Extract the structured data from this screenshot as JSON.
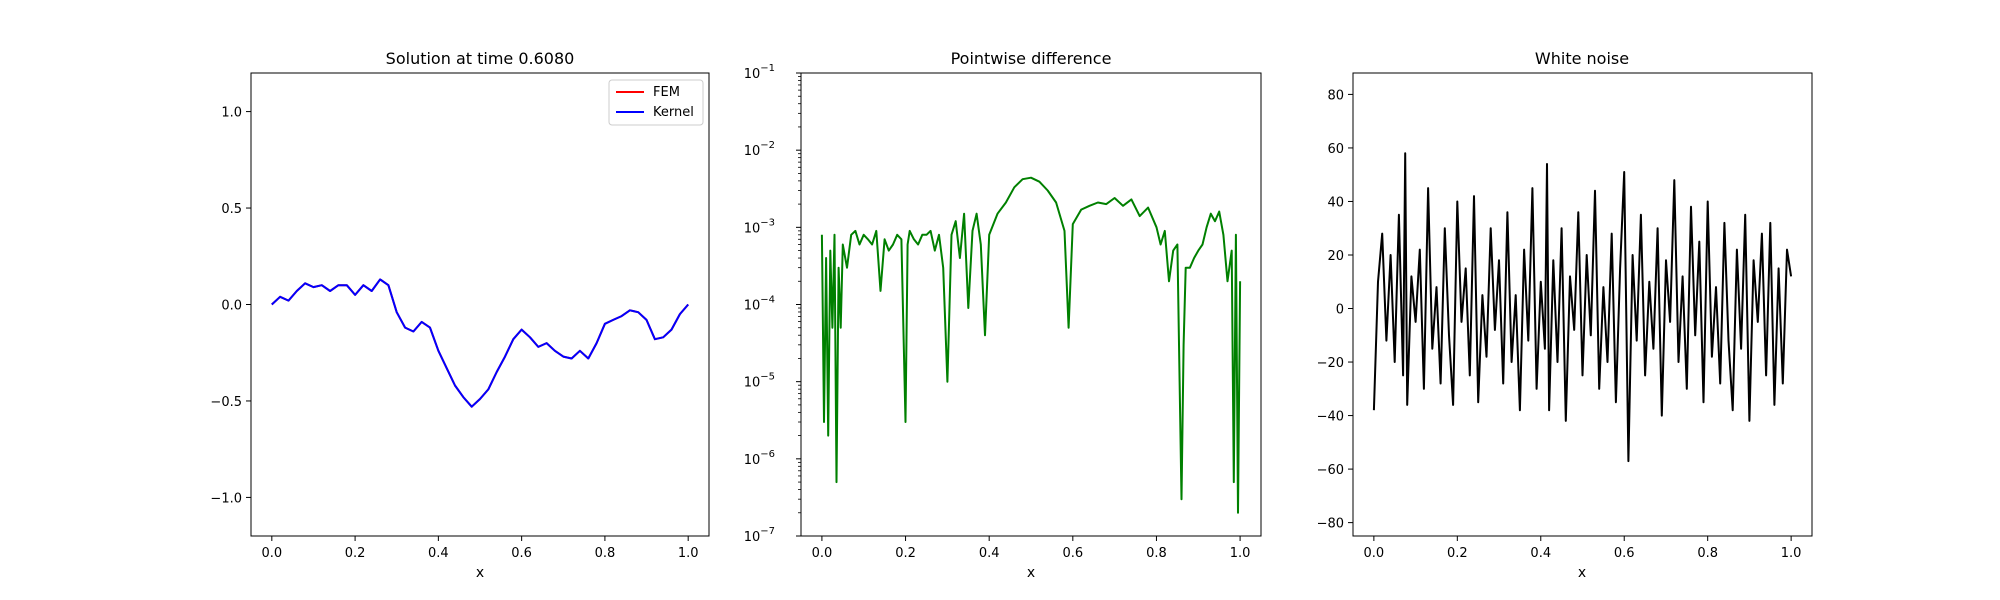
{
  "chart_data": [
    {
      "type": "line",
      "title": "Solution at time 0.6080",
      "xlabel": "x",
      "ylabel": "",
      "xlim": [
        -0.05,
        1.05
      ],
      "ylim": [
        -1.2,
        1.2
      ],
      "xticks": [
        "0.0",
        "0.2",
        "0.4",
        "0.6",
        "0.8",
        "1.0"
      ],
      "yticks": [
        "-1.0",
        "-0.5",
        "0.0",
        "0.5",
        "1.0"
      ],
      "legend": {
        "position": "top-right",
        "entries": [
          "FEM",
          "Kernel"
        ]
      },
      "series": [
        {
          "name": "FEM",
          "color": "#ff0000",
          "x": [
            0.0,
            0.02,
            0.04,
            0.06,
            0.08,
            0.1,
            0.12,
            0.14,
            0.16,
            0.18,
            0.2,
            0.22,
            0.24,
            0.26,
            0.28,
            0.3,
            0.32,
            0.34,
            0.36,
            0.38,
            0.4,
            0.42,
            0.44,
            0.46,
            0.48,
            0.5,
            0.52,
            0.54,
            0.56,
            0.58,
            0.6,
            0.62,
            0.64,
            0.66,
            0.68,
            0.7,
            0.72,
            0.74,
            0.76,
            0.78,
            0.8,
            0.82,
            0.84,
            0.86,
            0.88,
            0.9,
            0.92,
            0.94,
            0.96,
            0.98,
            1.0
          ],
          "y": [
            0.0,
            0.04,
            0.02,
            0.07,
            0.11,
            0.09,
            0.1,
            0.07,
            0.1,
            0.1,
            0.05,
            0.1,
            0.07,
            0.13,
            0.1,
            -0.04,
            -0.12,
            -0.14,
            -0.09,
            -0.12,
            -0.24,
            -0.33,
            -0.42,
            -0.48,
            -0.53,
            -0.49,
            -0.44,
            -0.35,
            -0.27,
            -0.18,
            -0.13,
            -0.17,
            -0.22,
            -0.2,
            -0.24,
            -0.27,
            -0.28,
            -0.24,
            -0.28,
            -0.2,
            -0.1,
            -0.08,
            -0.06,
            -0.03,
            -0.04,
            -0.08,
            -0.18,
            -0.17,
            -0.13,
            -0.05,
            0.0
          ]
        },
        {
          "name": "Kernel",
          "color": "#0000ff",
          "x": [
            0.0,
            0.02,
            0.04,
            0.06,
            0.08,
            0.1,
            0.12,
            0.14,
            0.16,
            0.18,
            0.2,
            0.22,
            0.24,
            0.26,
            0.28,
            0.3,
            0.32,
            0.34,
            0.36,
            0.38,
            0.4,
            0.42,
            0.44,
            0.46,
            0.48,
            0.5,
            0.52,
            0.54,
            0.56,
            0.58,
            0.6,
            0.62,
            0.64,
            0.66,
            0.68,
            0.7,
            0.72,
            0.74,
            0.76,
            0.78,
            0.8,
            0.82,
            0.84,
            0.86,
            0.88,
            0.9,
            0.92,
            0.94,
            0.96,
            0.98,
            1.0
          ],
          "y": [
            0.0,
            0.04,
            0.02,
            0.07,
            0.11,
            0.09,
            0.1,
            0.07,
            0.1,
            0.1,
            0.05,
            0.1,
            0.07,
            0.13,
            0.1,
            -0.04,
            -0.12,
            -0.14,
            -0.09,
            -0.12,
            -0.24,
            -0.33,
            -0.42,
            -0.48,
            -0.53,
            -0.49,
            -0.44,
            -0.35,
            -0.27,
            -0.18,
            -0.13,
            -0.17,
            -0.22,
            -0.2,
            -0.24,
            -0.27,
            -0.28,
            -0.24,
            -0.28,
            -0.2,
            -0.1,
            -0.08,
            -0.06,
            -0.03,
            -0.04,
            -0.08,
            -0.18,
            -0.17,
            -0.13,
            -0.05,
            0.0
          ]
        }
      ]
    },
    {
      "type": "line",
      "title": "Pointwise difference",
      "xlabel": "x",
      "ylabel": "",
      "yscale": "log",
      "xlim": [
        -0.05,
        1.05
      ],
      "ylim": [
        1e-07,
        0.1
      ],
      "xticks": [
        "0.0",
        "0.2",
        "0.4",
        "0.6",
        "0.8",
        "1.0"
      ],
      "yticks": [
        {
          "base": "10",
          "exp": "−7"
        },
        {
          "base": "10",
          "exp": "−6"
        },
        {
          "base": "10",
          "exp": "−5"
        },
        {
          "base": "10",
          "exp": "−4"
        },
        {
          "base": "10",
          "exp": "−3"
        },
        {
          "base": "10",
          "exp": "−2"
        },
        {
          "base": "10",
          "exp": "−1"
        }
      ],
      "series": [
        {
          "color": "#008000",
          "x": [
            0.0,
            0.005,
            0.01,
            0.015,
            0.02,
            0.025,
            0.03,
            0.035,
            0.04,
            0.045,
            0.05,
            0.06,
            0.07,
            0.08,
            0.09,
            0.1,
            0.11,
            0.12,
            0.13,
            0.14,
            0.15,
            0.16,
            0.17,
            0.18,
            0.19,
            0.2,
            0.205,
            0.21,
            0.22,
            0.23,
            0.24,
            0.25,
            0.26,
            0.27,
            0.28,
            0.29,
            0.3,
            0.31,
            0.32,
            0.33,
            0.34,
            0.35,
            0.36,
            0.37,
            0.38,
            0.39,
            0.4,
            0.42,
            0.44,
            0.46,
            0.48,
            0.5,
            0.52,
            0.54,
            0.56,
            0.58,
            0.59,
            0.6,
            0.62,
            0.64,
            0.66,
            0.68,
            0.7,
            0.72,
            0.74,
            0.76,
            0.78,
            0.8,
            0.81,
            0.82,
            0.83,
            0.84,
            0.85,
            0.86,
            0.865,
            0.87,
            0.88,
            0.89,
            0.9,
            0.91,
            0.92,
            0.93,
            0.94,
            0.95,
            0.96,
            0.97,
            0.98,
            0.985,
            0.99,
            0.995,
            1.0
          ],
          "y": [
            0.0008,
            3e-06,
            0.0004,
            2e-06,
            0.0005,
            5e-05,
            0.0008,
            5e-07,
            0.0003,
            5e-05,
            0.0006,
            0.0003,
            0.0008,
            0.0009,
            0.0006,
            0.0008,
            0.0007,
            0.0006,
            0.0009,
            0.00015,
            0.0007,
            0.0005,
            0.0006,
            0.0008,
            0.0007,
            3e-06,
            0.0006,
            0.0009,
            0.0007,
            0.0006,
            0.0008,
            0.0008,
            0.0009,
            0.0005,
            0.0008,
            0.0003,
            1e-05,
            0.0008,
            0.0012,
            0.0004,
            0.0015,
            9e-05,
            0.0009,
            0.0015,
            0.0006,
            4e-05,
            0.0008,
            0.0015,
            0.0021,
            0.0033,
            0.0042,
            0.0044,
            0.0039,
            0.003,
            0.0021,
            0.0009,
            5e-05,
            0.0011,
            0.0017,
            0.0019,
            0.0021,
            0.002,
            0.0024,
            0.0019,
            0.0023,
            0.0014,
            0.0018,
            0.001,
            0.0006,
            0.0009,
            0.0002,
            0.0005,
            0.0006,
            3e-07,
            3e-05,
            0.0003,
            0.0003,
            0.0004,
            0.0005,
            0.0006,
            0.001,
            0.0015,
            0.0012,
            0.0016,
            0.0008,
            0.0002,
            0.0005,
            5e-07,
            0.0008,
            2e-07,
            0.0002
          ]
        }
      ]
    },
    {
      "type": "line",
      "title": "White noise",
      "xlabel": "x",
      "ylabel": "",
      "xlim": [
        -0.05,
        1.05
      ],
      "ylim": [
        -85,
        88
      ],
      "xticks": [
        "0.0",
        "0.2",
        "0.4",
        "0.6",
        "0.8",
        "1.0"
      ],
      "yticks": [
        "-80",
        "-60",
        "-40",
        "-20",
        "0",
        "20",
        "40",
        "60",
        "80"
      ],
      "series": [
        {
          "color": "#000000",
          "x": [
            0.0,
            0.01,
            0.02,
            0.03,
            0.04,
            0.05,
            0.06,
            0.07,
            0.075,
            0.08,
            0.09,
            0.1,
            0.11,
            0.12,
            0.13,
            0.14,
            0.15,
            0.16,
            0.17,
            0.18,
            0.19,
            0.2,
            0.21,
            0.22,
            0.23,
            0.24,
            0.25,
            0.26,
            0.27,
            0.28,
            0.29,
            0.3,
            0.31,
            0.32,
            0.33,
            0.34,
            0.35,
            0.36,
            0.37,
            0.38,
            0.39,
            0.4,
            0.41,
            0.415,
            0.42,
            0.43,
            0.44,
            0.45,
            0.46,
            0.47,
            0.48,
            0.49,
            0.5,
            0.51,
            0.52,
            0.53,
            0.54,
            0.55,
            0.56,
            0.57,
            0.58,
            0.59,
            0.6,
            0.61,
            0.62,
            0.63,
            0.64,
            0.65,
            0.66,
            0.67,
            0.68,
            0.69,
            0.7,
            0.71,
            0.72,
            0.73,
            0.74,
            0.75,
            0.76,
            0.77,
            0.78,
            0.79,
            0.8,
            0.81,
            0.82,
            0.83,
            0.84,
            0.85,
            0.86,
            0.87,
            0.88,
            0.89,
            0.9,
            0.91,
            0.92,
            0.93,
            0.94,
            0.95,
            0.96,
            0.97,
            0.98,
            0.99,
            1.0
          ],
          "y": [
            -38,
            10,
            28,
            -12,
            20,
            -20,
            35,
            -25,
            58,
            -36,
            12,
            -5,
            22,
            -30,
            45,
            -15,
            8,
            -28,
            30,
            -10,
            -36,
            40,
            -5,
            15,
            -25,
            42,
            -35,
            5,
            -18,
            30,
            -8,
            18,
            -28,
            36,
            -20,
            5,
            -38,
            22,
            -12,
            45,
            -30,
            10,
            -15,
            54,
            -38,
            18,
            -20,
            30,
            -42,
            12,
            -8,
            36,
            -25,
            20,
            -10,
            44,
            -30,
            8,
            -20,
            28,
            -35,
            15,
            51,
            -57,
            20,
            -12,
            35,
            -25,
            10,
            -15,
            30,
            -40,
            18,
            -5,
            48,
            -20,
            12,
            -30,
            38,
            -10,
            25,
            -35,
            40,
            -18,
            8,
            -28,
            32,
            -12,
            -38,
            22,
            -15,
            35,
            -42,
            18,
            -5,
            28,
            -25,
            32,
            -36,
            15,
            -28,
            22,
            12
          ]
        }
      ]
    }
  ]
}
